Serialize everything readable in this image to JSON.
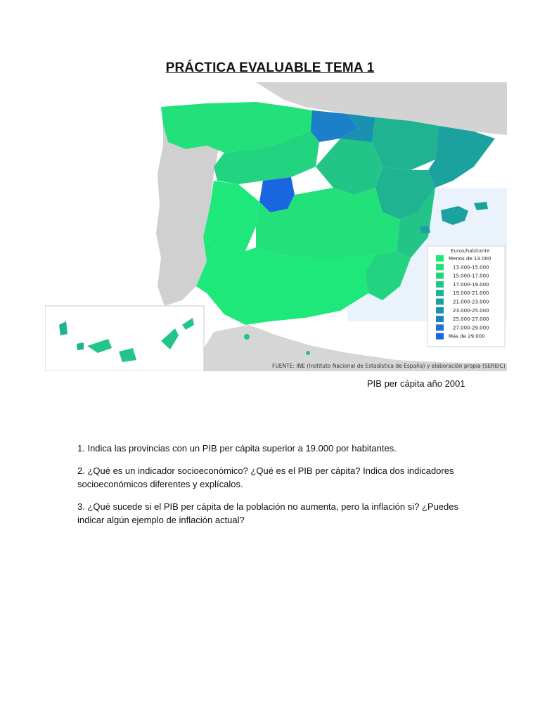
{
  "title": "PRÁCTICA EVALUABLE TEMA 1",
  "map": {
    "legend_title": "Euros/habitante",
    "legend": [
      {
        "label": "Menos de 13.000",
        "color": "#1fe87a"
      },
      {
        "label": "13.000-15.000",
        "color": "#22e07a"
      },
      {
        "label": "15.000-17.000",
        "color": "#22d47f"
      },
      {
        "label": "17.000-19.000",
        "color": "#22c487"
      },
      {
        "label": "19.000-21.000",
        "color": "#1fb391"
      },
      {
        "label": "21.000-23.000",
        "color": "#1ba29f"
      },
      {
        "label": "23.000-25.000",
        "color": "#1b91b0"
      },
      {
        "label": "25.000-27.000",
        "color": "#1c80c4"
      },
      {
        "label": "27.000-29.000",
        "color": "#1b73d2"
      },
      {
        "label": "Más de 29.000",
        "color": "#1a66e0"
      }
    ],
    "source": "FUENTE: INE (Instituto Nacional de Estadística de España) y elaboración propia (SEREIC)"
  },
  "caption": "PIB per cápita año 2001",
  "questions": [
    "1. Indica las provincias con un PIB per cápita superior a 19.000 por habitantes.",
    "2. ¿Qué es un indicador socioeconómico? ¿Qué es el PIB per cápita? Indica dos indicadores socioeconómicos diferentes y explícalos.",
    "3.  ¿Qué sucede si el PIB per cápita de la población no aumenta, pero la inflación si? ¿Puedes indicar algún ejemplo de inflación actual?"
  ]
}
